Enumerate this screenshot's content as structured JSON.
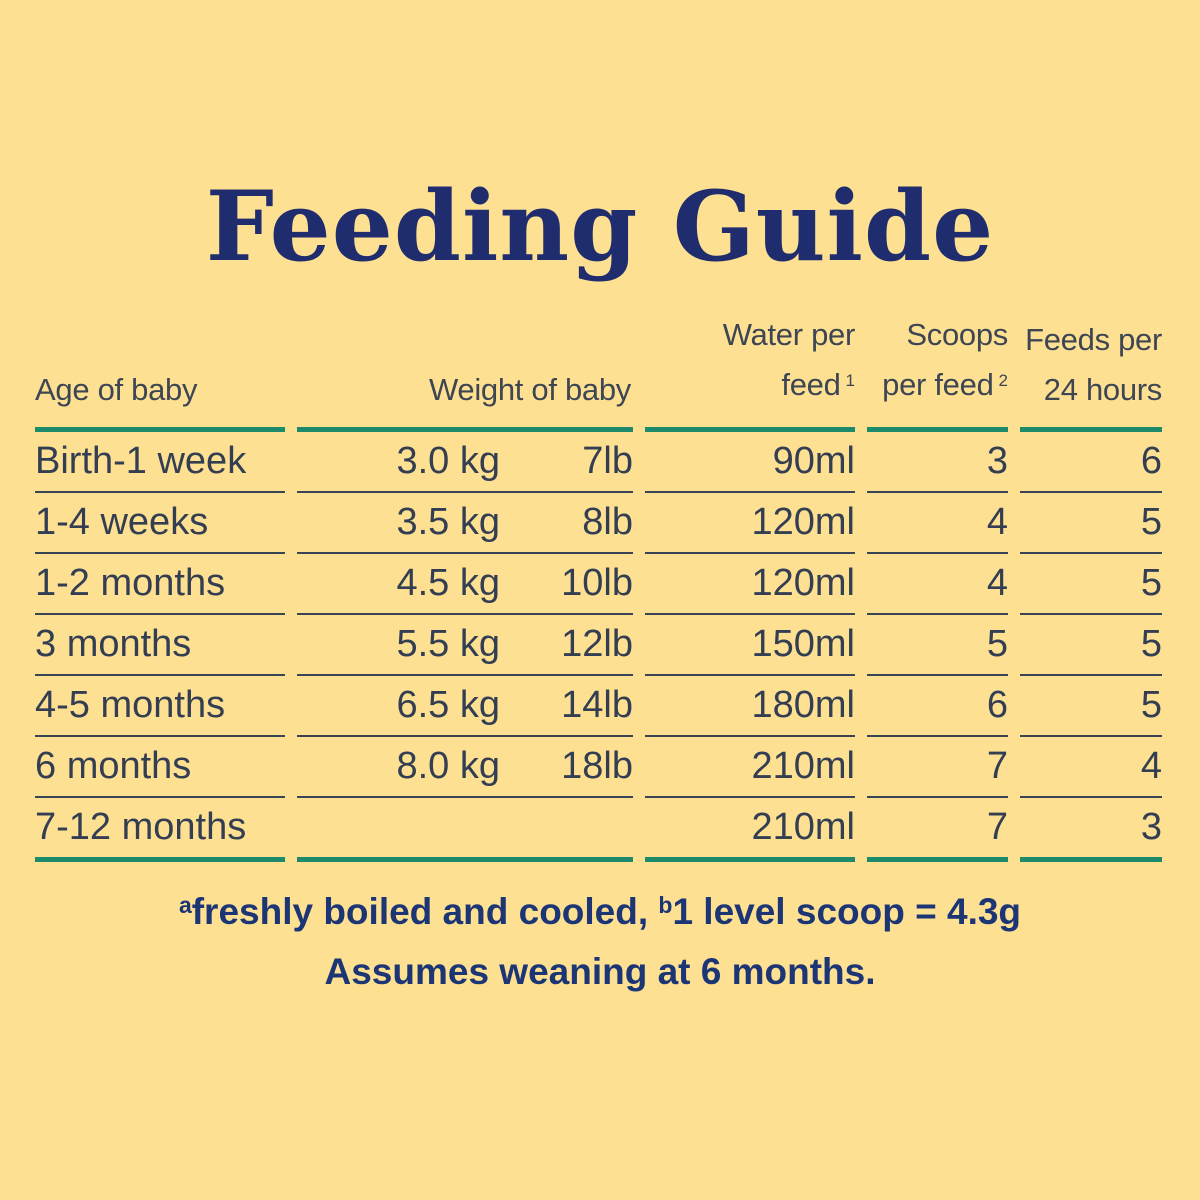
{
  "title": "Feeding Guide",
  "table": {
    "headers": {
      "age": "Age of baby",
      "weight": "Weight of baby",
      "water_line1": "Water per",
      "water_line2": "feed",
      "water_sup": "1",
      "scoops_line1": "Scoops",
      "scoops_line2": "per feed",
      "scoops_sup": "2",
      "feeds_line1": "Feeds per",
      "feeds_line2": "24 hours"
    },
    "rows": [
      {
        "age": "Birth-1 week",
        "kg": "3.0 kg",
        "lb": "7lb",
        "water": "90ml",
        "scoops": "3",
        "feeds": "6"
      },
      {
        "age": "1-4 weeks",
        "kg": "3.5 kg",
        "lb": "8lb",
        "water": "120ml",
        "scoops": "4",
        "feeds": "5"
      },
      {
        "age": "1-2 months",
        "kg": "4.5 kg",
        "lb": "10lb",
        "water": "120ml",
        "scoops": "4",
        "feeds": "5"
      },
      {
        "age": "3 months",
        "kg": "5.5 kg",
        "lb": "12lb",
        "water": "150ml",
        "scoops": "5",
        "feeds": "5"
      },
      {
        "age": "4-5 months",
        "kg": "6.5 kg",
        "lb": "14lb",
        "water": "180ml",
        "scoops": "6",
        "feeds": "5"
      },
      {
        "age": "6 months",
        "kg": "8.0 kg",
        "lb": "18lb",
        "water": "210ml",
        "scoops": "7",
        "feeds": "4"
      },
      {
        "age": "7-12 months",
        "kg": "",
        "lb": "",
        "water": "210ml",
        "scoops": "7",
        "feeds": "3"
      }
    ]
  },
  "footnotes": {
    "sup_a": "a",
    "note_a": "freshly boiled and cooled, ",
    "sup_b": "b",
    "note_b": "1 level scoop = 4.3g",
    "line2": "Assumes weaning at 6 months."
  },
  "colors": {
    "background": "#FDE092",
    "title": "#1F2D6E",
    "table_text": "#333E52",
    "header_text": "#3E4653",
    "row_line": "#3A4354",
    "teal_rule": "#1D8A6C",
    "footnote_text": "#1B3575"
  }
}
